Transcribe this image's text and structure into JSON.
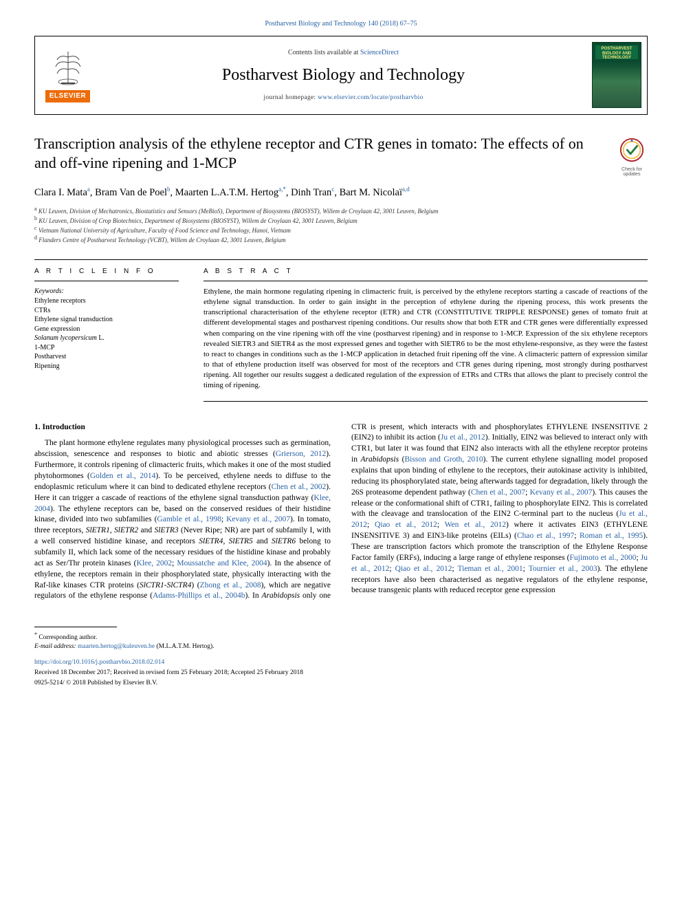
{
  "top_link": {
    "citation": "Postharvest Biology and Technology 140 (2018) 67–75",
    "color": "#2862a5"
  },
  "header": {
    "contents_prefix": "Contents lists available at ",
    "contents_link": "ScienceDirect",
    "journal_title": "Postharvest Biology and Technology",
    "homepage_label": "journal homepage: ",
    "homepage_url": "www.elsevier.com/locate/postharvbio",
    "publisher_label": "ELSEVIER",
    "cover_label": "POSTHARVEST BIOLOGY AND TECHNOLOGY"
  },
  "article": {
    "title": "Transcription analysis of the ethylene receptor and CTR genes in tomato: The effects of on and off-vine ripening and 1-MCP",
    "check_updates": "Check for updates"
  },
  "authors_html": "Clara I. Mata<sup>a</sup>, Bram Van de Poel<sup>b</sup>, Maarten L.A.T.M. Hertog<sup>a,</sup><sup class=\"star\">*</sup>, Dinh Tran<sup>c</sup>, Bart M. Nicolaï<sup>a,d</sup>",
  "affiliations": [
    "a KU Leuven, Division of Mechatronics, Biostatistics and Sensors (MeBioS), Department of Biosystems (BIOSYST), Willem de Croylaan 42, 3001 Leuven, Belgium",
    "b KU Leuven, Division of Crop Biotechnics, Department of Biosystems (BIOSYST), Willem de Croylaan 42, 3001 Leuven, Belgium",
    "c Vietnam National University of Agriculture, Faculty of Food Science and Technology, Hanoi, Vietnam",
    "d Flanders Centre of Postharvest Technology (VCBT), Willem de Croylaan 42, 3001 Leuven, Belgium"
  ],
  "article_info": {
    "heading": "A R T I C L E  I N F O",
    "keywords_label": "Keywords:",
    "keywords": [
      "Ethylene receptors",
      "CTRs",
      "Ethylene signal transduction",
      "Gene expression",
      "Solanum lycopersicum L.",
      "1-MCP",
      "Postharvest",
      "Ripening"
    ]
  },
  "abstract": {
    "heading": "A B S T R A C T",
    "text": "Ethylene, the main hormone regulating ripening in climacteric fruit, is perceived by the ethylene receptors starting a cascade of reactions of the ethylene signal transduction. In order to gain insight in the perception of ethylene during the ripening process, this work presents the transcriptional characterisation of the ethylene receptor (ETR) and CTR (CONSTITUTIVE TRIPPLE RESPONSE) genes of tomato fruit at different developmental stages and postharvest ripening conditions. Our results show that both ETR and CTR genes were differentially expressed when comparing on the vine ripening with off the vine (postharvest ripening) and in response to 1-MCP. Expression of the six ethylene receptors revealed SlETR3 and SlETR4 as the most expressed genes and together with SlETR6 to be the most ethylene-responsive, as they were the fastest to react to changes in conditions such as the 1-MCP application in detached fruit ripening off the vine. A climacteric pattern of expression similar to that of ethylene production itself was observed for most of the receptors and CTR genes during ripening, most strongly during postharvest ripening. All together our results suggest a dedicated regulation of the expression of ETRs and CTRs that allows the plant to precisely control the timing of ripening."
  },
  "introduction": {
    "heading": "1. Introduction",
    "para1_pre": "The plant hormone ethylene regulates many physiological processes such as germination, abscission, senescence and responses to biotic and abiotic stresses (",
    "ref1": "Grierson, 2012",
    "para1_mid1": "). Furthermore, it controls ripening of climacteric fruits, which makes it one of the most studied phytohormones (",
    "ref2": "Golden et al., 2014",
    "para1_mid2": "). To be perceived, ethylene needs to diffuse to the endoplasmic reticulum where it can bind to dedicated ethylene receptors (",
    "ref3": "Chen et al., 2002",
    "para1_mid3": "). Here it can trigger a cascade of reactions of the ethylene signal transduction pathway (",
    "ref4": "Klee, 2004",
    "para1_mid4": "). The ethylene receptors can be, based on the conserved residues of their histidine kinase, divided into two subfamilies (",
    "ref5": "Gamble et al., 1998",
    "para1_mid5": "; ",
    "ref6": "Kevany et al., 2007",
    "para1_mid6": "). In tomato, three receptors, SlETR1, SlETR2 and SlETR3 (Never Ripe; NR) are part of subfamily I, with a well conserved histidine kinase, and receptors SlETR4, SlETR5 and SlETR6 belong to subfamily II, which lack some of the necessary residues of the histidine kinase and probably act as Ser/Thr protein kinases (",
    "ref7": "Klee, 2002",
    "para1_mid7": "; ",
    "ref8": "Moussatche and Klee, 2004",
    "para1_mid8": "). In the absence of ethylene, the receptors remain in their phosphorylated state, physically interacting with the Raf-like kinases CTR proteins (SlCTR1-SlCTR4) (",
    "ref9": "Zhong et al., 2008",
    "para1_mid9": "), which are negative regulators of the ethylene response (",
    "ref10": "Adams-Phillips et al., 2004b",
    "para1_mid10": "). In Arabidopsis only one CTR is present, which interacts with and phosphorylates ETHYLENE INSENSITIVE 2 (EIN2) to inhibit its action (",
    "ref11": "Ju et al., 2012",
    "para1_mid11": "). Initially, EIN2 was believed to interact only with CTR1, but later it was found that EIN2 also interacts with all the ethylene receptor proteins in Arabidopsis (",
    "ref12": "Bisson and Groth, 2010",
    "para1_mid12": "). The current ethylene signalling model proposed explains that upon binding of ethylene to the receptors, their autokinase activity is inhibited, reducing its phosphorylated state, being afterwards tagged for degradation, likely through the 26S proteasome dependent pathway (",
    "ref13": "Chen et al., 2007",
    "para1_mid13": "; ",
    "ref14": "Kevany et al., 2007",
    "para1_mid14": "). This causes the release or the conformational shift of CTR1, failing to phosphorylate EIN2. This is correlated with the cleavage and translocation of the EIN2 C-terminal part to the nucleus (",
    "ref15": "Ju et al., 2012",
    "para1_mid15": "; ",
    "ref16": "Qiao et al., 2012",
    "para1_mid16": "; ",
    "ref17": "Wen et al., 2012",
    "para1_mid17": ") where it activates EIN3 (ETHYLENE INSENSITIVE 3) and EIN3-like proteins (EILs) (",
    "ref18": "Chao et al., 1997",
    "para1_mid18": "; ",
    "ref19": "Roman et al., 1995",
    "para1_mid19": "). These are transcription factors which promote the transcription of the Ethylene Response Factor family (ERFs), inducing a large range of ethylene responses (",
    "ref20": "Fujimoto et al., 2000",
    "para1_mid20": "; ",
    "ref21": "Ju et al., 2012",
    "para1_mid21": "; ",
    "ref22": "Qiao et al., 2012",
    "para1_mid22": "; ",
    "ref23": "Tieman et al., 2001",
    "para1_mid23": "; ",
    "ref24": "Tournier et al., 2003",
    "para1_mid24": "). The ethylene receptors have also been characterised as negative regulators of the ethylene response, because transgenic plants with reduced receptor gene expression"
  },
  "footer": {
    "corresp_marker": "*",
    "corresp_text": " Corresponding author.",
    "email_label": "E-mail address: ",
    "email": "maarten.hertog@kuleuven.be",
    "email_person": " (M.L.A.T.M. Hertog).",
    "doi": "https://doi.org/10.1016/j.postharvbio.2018.02.014",
    "history": "Received 18 December 2017; Received in revised form 25 February 2018; Accepted 25 February 2018",
    "copyright": "0925-5214/ © 2018 Published by Elsevier B.V."
  },
  "colors": {
    "link": "#2862a5",
    "publisher_orange": "#ec6c0a",
    "cover_green_dark": "#0a4a2f",
    "cover_green_light": "#3a7a4f",
    "badge_ring": "#b01f2e",
    "badge_mark": "#2a7a3f"
  }
}
